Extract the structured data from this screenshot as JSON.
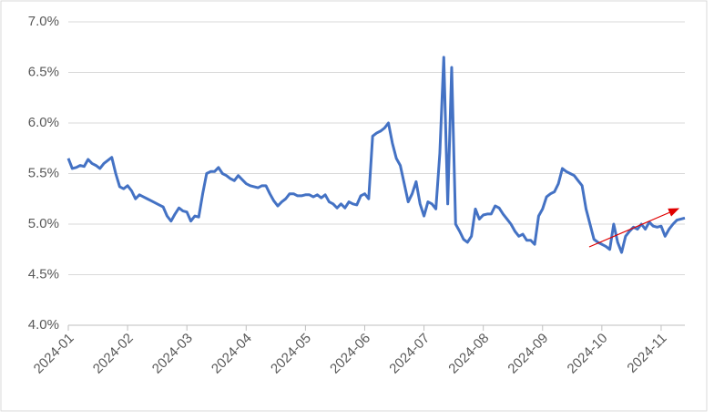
{
  "chart_data": {
    "type": "line",
    "categories": [
      "2024-01",
      null,
      null,
      null,
      null,
      null,
      null,
      null,
      null,
      null,
      null,
      null,
      null,
      null,
      null,
      "2024-02",
      null,
      null,
      null,
      null,
      null,
      null,
      null,
      null,
      null,
      null,
      null,
      null,
      null,
      null,
      "2024-03",
      null,
      null,
      null,
      null,
      null,
      null,
      null,
      null,
      null,
      null,
      null,
      null,
      null,
      null,
      "2024-04",
      null,
      null,
      null,
      null,
      null,
      null,
      null,
      null,
      null,
      null,
      null,
      null,
      null,
      null,
      "2024-05",
      null,
      null,
      null,
      null,
      null,
      null,
      null,
      null,
      null,
      null,
      null,
      null,
      null,
      null,
      "2024-06",
      null,
      null,
      null,
      null,
      null,
      null,
      null,
      null,
      null,
      null,
      null,
      null,
      null,
      null,
      "2024-07",
      null,
      null,
      null,
      null,
      null,
      null,
      null,
      null,
      null,
      null,
      null,
      null,
      null,
      null,
      "2024-08",
      null,
      null,
      null,
      null,
      null,
      null,
      null,
      null,
      null,
      null,
      null,
      null,
      null,
      null,
      "2024-09",
      null,
      null,
      null,
      null,
      null,
      null,
      null,
      null,
      null,
      null,
      null,
      null,
      null,
      null,
      "2024-10",
      null,
      null,
      null,
      null,
      null,
      null,
      null,
      null,
      null,
      null,
      null,
      null,
      null,
      null,
      "2024-11",
      null,
      null,
      null,
      null,
      null,
      null
    ],
    "values": [
      5.65,
      5.55,
      5.56,
      5.58,
      5.57,
      5.64,
      5.6,
      5.58,
      5.55,
      5.6,
      5.63,
      5.66,
      5.5,
      5.37,
      5.35,
      5.38,
      5.33,
      5.25,
      5.29,
      5.27,
      5.25,
      5.23,
      5.21,
      5.19,
      5.17,
      5.08,
      5.03,
      5.1,
      5.16,
      5.13,
      5.12,
      5.03,
      5.08,
      5.07,
      5.3,
      5.5,
      5.52,
      5.52,
      5.56,
      5.5,
      5.48,
      5.45,
      5.43,
      5.48,
      5.44,
      5.4,
      5.38,
      5.37,
      5.36,
      5.38,
      5.38,
      5.3,
      5.23,
      5.18,
      5.22,
      5.25,
      5.3,
      5.3,
      5.28,
      5.28,
      5.29,
      5.29,
      5.27,
      5.29,
      5.26,
      5.29,
      5.22,
      5.2,
      5.16,
      5.2,
      5.16,
      5.22,
      5.2,
      5.19,
      5.28,
      5.3,
      5.25,
      5.87,
      5.9,
      5.92,
      5.95,
      6.0,
      5.8,
      5.65,
      5.58,
      5.4,
      5.22,
      5.3,
      5.42,
      5.2,
      5.08,
      5.22,
      5.2,
      5.15,
      5.7,
      6.65,
      5.2,
      6.55,
      5.0,
      4.93,
      4.85,
      4.82,
      4.88,
      5.15,
      5.05,
      5.09,
      5.1,
      5.1,
      5.18,
      5.16,
      5.1,
      5.05,
      5.0,
      4.93,
      4.88,
      4.9,
      4.84,
      4.84,
      4.8,
      5.08,
      5.15,
      5.27,
      5.3,
      5.32,
      5.4,
      5.55,
      5.52,
      5.5,
      5.48,
      5.43,
      5.38,
      5.15,
      5.0,
      4.85,
      4.82,
      4.8,
      4.78,
      4.75,
      5.0,
      4.82,
      4.72,
      4.88,
      4.93,
      4.97,
      4.95,
      5.0,
      4.95,
      5.02,
      4.98,
      4.97,
      4.98,
      4.88,
      4.95,
      5.0,
      5.04,
      5.05,
      5.06
    ],
    "color": "#4472c4",
    "ylim": [
      4,
      7
    ],
    "yticks": [
      {
        "value": 4,
        "label": "4.0%"
      },
      {
        "value": 4.5,
        "label": "4.5%"
      },
      {
        "value": 5,
        "label": "5.0%"
      },
      {
        "value": 5.5,
        "label": "5.5%"
      },
      {
        "value": 6,
        "label": "6.0%"
      },
      {
        "value": 6.5,
        "label": "6.5%"
      },
      {
        "value": 7,
        "label": "7.0%"
      }
    ],
    "grid": true
  }
}
